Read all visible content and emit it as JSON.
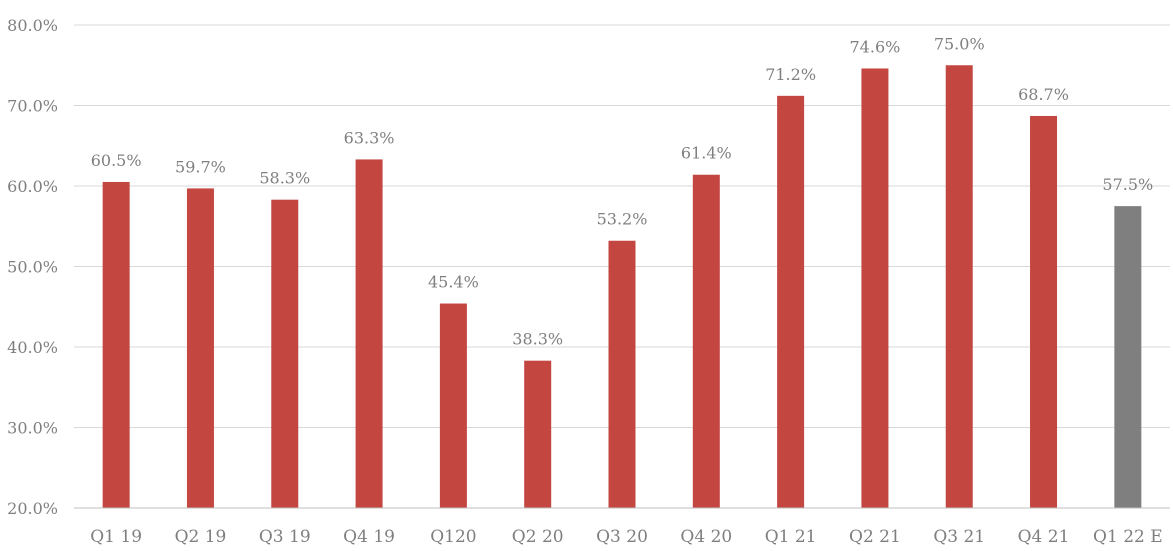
{
  "chart_data": {
    "type": "bar",
    "title": "",
    "xlabel": "",
    "ylabel": "",
    "categories": [
      "Q1 19",
      "Q2 19",
      "Q3 19",
      "Q4 19",
      "Q120",
      "Q2 20",
      "Q3 20",
      "Q4 20",
      "Q1 21",
      "Q2 21",
      "Q3 21",
      "Q4 21",
      "Q1 22 E"
    ],
    "values": [
      60.5,
      59.7,
      58.3,
      63.3,
      45.4,
      38.3,
      53.2,
      61.4,
      71.2,
      74.6,
      75.0,
      68.7,
      57.5
    ],
    "data_labels": [
      "60.5%",
      "59.7%",
      "58.3%",
      "63.3%",
      "45.4%",
      "38.3%",
      "53.2%",
      "61.4%",
      "71.2%",
      "74.6%",
      "75.0%",
      "68.7%",
      "57.5%"
    ],
    "ylim": [
      20,
      80
    ],
    "yticks": [
      20,
      30,
      40,
      50,
      60,
      70,
      80
    ],
    "ytick_labels": [
      "20.0%",
      "30.0%",
      "40.0%",
      "50.0%",
      "60.0%",
      "70.0%",
      "80.0%"
    ],
    "grid": true,
    "legend": "none",
    "colors": {
      "actual": "#c44641",
      "estimate": "#7f7f7f"
    },
    "bar_colors": [
      "actual",
      "actual",
      "actual",
      "actual",
      "actual",
      "actual",
      "actual",
      "actual",
      "actual",
      "actual",
      "actual",
      "actual",
      "estimate"
    ]
  }
}
